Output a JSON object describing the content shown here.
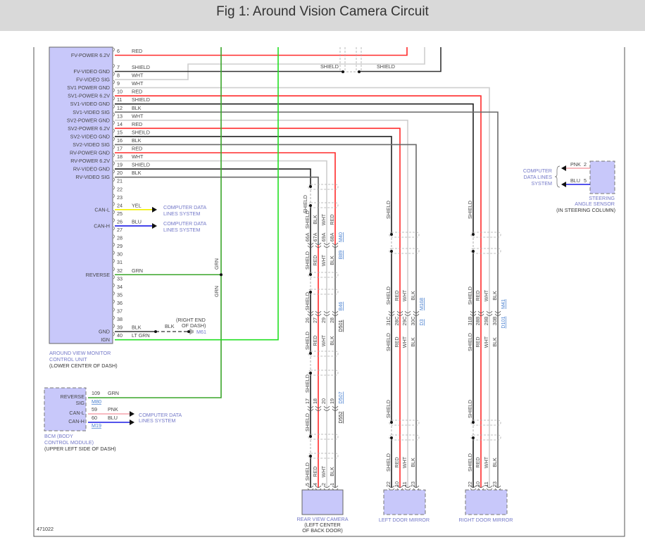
{
  "title": "Fig 1: Around Vision Camera Circuit",
  "figure_id": "471022",
  "colors": {
    "RED": "#ff2a2a",
    "WHT": "#cfcfcf",
    "BLK": "#222222",
    "GRY": "#6a6a6a",
    "GRN": "#3aa52a",
    "LTGRN": "#22e022",
    "YEL": "#f2f000",
    "BLU": "#1a1ae6",
    "PNK": "#f5a3ab",
    "module": "#c8c8fa",
    "component_text": "#7378c8",
    "link": "#4a80d0"
  },
  "avm": {
    "label": [
      "AROUND VIEW MONITOR",
      "CONTROL UNIT",
      "(LOWER CENTER OF DASH)"
    ],
    "pins": [
      {
        "n": "6",
        "wire": "RED",
        "signal": "FV-POWER 6.2V"
      },
      {
        "n": "7",
        "wire": "SHIELD",
        "signal": "FV-VIDEO GND"
      },
      {
        "n": "8",
        "wire": "WHT",
        "signal": "FV-VIDEO SIG"
      },
      {
        "n": "9",
        "wire": "WHT",
        "signal": "SV1 POWER GND"
      },
      {
        "n": "10",
        "wire": "RED",
        "signal": "SV1-POWER 6.2V"
      },
      {
        "n": "11",
        "wire": "SHIELD",
        "signal": "SV1-VIDEO GND"
      },
      {
        "n": "12",
        "wire": "BLK",
        "signal": "SV1-VIDEO SIG"
      },
      {
        "n": "13",
        "wire": "WHT",
        "signal": "SV2-POWER GND"
      },
      {
        "n": "14",
        "wire": "RED",
        "signal": "SV2-POWER 6.2V"
      },
      {
        "n": "15",
        "wire": "SHEILD",
        "signal": "SV2-VIDEO GND"
      },
      {
        "n": "16",
        "wire": "BLK",
        "signal": "SV2-VIDEO SIG"
      },
      {
        "n": "17",
        "wire": "RED",
        "signal": "RV-POWER GND"
      },
      {
        "n": "18",
        "wire": "WHT",
        "signal": "RV-POWER 6.2V"
      },
      {
        "n": "19",
        "wire": "SHIELD",
        "signal": "RV-VIDEO GND"
      },
      {
        "n": "20",
        "wire": "BLK",
        "signal": "RV-VIDEO SIG"
      },
      {
        "n": "21"
      },
      {
        "n": "22"
      },
      {
        "n": "23"
      },
      {
        "n": "24",
        "wire": "YEL",
        "signal": "CAN-L"
      },
      {
        "n": "25"
      },
      {
        "n": "26",
        "wire": "BLU",
        "signal": "CAN-H"
      },
      {
        "n": "27"
      },
      {
        "n": "28"
      },
      {
        "n": "29"
      },
      {
        "n": "30"
      },
      {
        "n": "31"
      },
      {
        "n": "32",
        "wire": "GRN",
        "signal": "REVERSE"
      },
      {
        "n": "33"
      },
      {
        "n": "34"
      },
      {
        "n": "35"
      },
      {
        "n": "36"
      },
      {
        "n": "37"
      },
      {
        "n": "38"
      },
      {
        "n": "39",
        "wire": "BLK",
        "signal": "GND"
      },
      {
        "n": "40",
        "wire": "LT GRN",
        "signal": "IGN"
      }
    ],
    "can_l_dest": [
      "COMPUTER DATA",
      "LINES SYSTEM"
    ],
    "can_h_dest": [
      "COMPUTER DATA",
      "LINES SYSTEM"
    ],
    "ground": {
      "wire": "BLK",
      "location": [
        "(RIGHT END",
        "OF DASH)"
      ],
      "connector": "M61"
    },
    "shield_labels": [
      "SHIELD",
      "SHIELD"
    ],
    "grn_labels": [
      "GRN",
      "GRN"
    ]
  },
  "bcm": {
    "label": [
      "BCM (BODY",
      "CONTROL MODULE)",
      "(UPPER LEFT SIDE OF DASH)"
    ],
    "pins": [
      {
        "n": "109",
        "wire": "GRN",
        "signal": [
          "REVERSE",
          "SIG"
        ],
        "connector": "M80"
      },
      {
        "n": "59",
        "wire": "PNK",
        "signal": [
          "CAN-L"
        ]
      },
      {
        "n": "60",
        "wire": "BLU",
        "signal": [
          "CAN-H"
        ],
        "connector": "M19"
      }
    ],
    "dest": [
      "COMPUTER DATA",
      "LINES SYSTEM"
    ]
  },
  "steering": {
    "label": [
      "STEERING",
      "ANGLE SENSOR",
      "(IN STEERING COLUMN)"
    ],
    "pins": [
      {
        "n": "2",
        "wire": "PNK"
      },
      {
        "n": "5",
        "wire": "BLU"
      }
    ],
    "dest": [
      "COMPUTER",
      "DATA LINES",
      "SYSTEM"
    ]
  },
  "rear_camera": {
    "label": [
      "REAR VIEW CAMERA",
      "(LEFT CENTER",
      "OF BACK DOOR)"
    ],
    "top_shield": "SHIELD",
    "rows": [
      {
        "above": [
          "SHIELD",
          "BLK",
          "WHT",
          "RED"
        ],
        "numbers": [
          "66A",
          "67A",
          "69A",
          "68A"
        ],
        "below": [
          "SHIELD",
          "RED",
          "WHT",
          "BLK"
        ],
        "conn_above": "M40",
        "conn_below": "B89"
      },
      {
        "above": [
          "SHIELD"
        ],
        "numbers": [
          "26",
          "27",
          "29",
          "28"
        ],
        "below": [
          "SHIELD",
          "RED",
          "WHT",
          "BLK"
        ],
        "conn_above": "B46",
        "conn_below": "D501"
      },
      {
        "above": [
          "SHIELD"
        ],
        "numbers": [
          "17",
          "18",
          "20",
          "19"
        ],
        "below": [
          "SHIELD"
        ],
        "conn_above": "D507",
        "conn_below": "D552"
      },
      {
        "above": [
          "SHIELD",
          "RED",
          "WHT",
          "BLK"
        ],
        "numbers": [
          "5",
          "4",
          "2",
          "1"
        ]
      }
    ]
  },
  "left_mirror": {
    "label": [
      "LEFT DOOR MIRROR"
    ],
    "top_shield": "SHIELD",
    "rows": [
      {
        "above": [
          "SHIELD",
          "RED",
          "WHT",
          "BLK"
        ],
        "numbers": [
          "31C",
          "28C",
          "29C",
          "30C"
        ],
        "below": [
          "SHIELD",
          "RED",
          "WHT",
          "BLK"
        ],
        "conn_above": "M168",
        "conn_below": "D3"
      },
      {
        "above": [
          "SHIELD"
        ]
      },
      {
        "above": [
          "SHIELD",
          "RED",
          "WHT",
          "BLK"
        ],
        "numbers": [
          "22",
          "10",
          "11",
          "23"
        ]
      }
    ]
  },
  "right_mirror": {
    "label": [
      "RIGHT DOOR MIRROR"
    ],
    "top_shield": "SHIELD",
    "rows": [
      {
        "above": [
          "SHIELD",
          "RED",
          "WHT",
          "BLK"
        ],
        "numbers": [
          "31B",
          "28B",
          "29B",
          "30B"
        ],
        "below": [
          "SHIELD",
          "RED",
          "WHT",
          "BLK"
        ],
        "conn_above": "M41",
        "conn_below": "D101"
      },
      {
        "above": [
          "SHIELD"
        ]
      },
      {
        "above": [
          "SHIELD",
          "RED",
          "WHT",
          "BLK"
        ],
        "numbers": [
          "22",
          "10",
          "11",
          "23"
        ]
      }
    ]
  }
}
